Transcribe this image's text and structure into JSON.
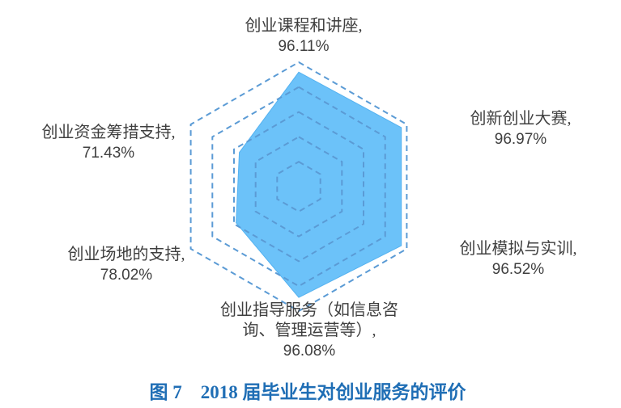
{
  "chart_data": {
    "type": "radar",
    "title": "图 7　2018 届毕业生对创业服务的评价",
    "legend": "none",
    "grid": {
      "rings": 5,
      "shape": "hexagon",
      "line_style": "dashed"
    },
    "axis_range": {
      "min": 0,
      "max": 100,
      "unit": "%"
    },
    "axes": [
      {
        "label": "创业课程和讲座",
        "label_lines": [
          "创业课程和讲座,"
        ],
        "value": 96.11,
        "value_label": "96.11%",
        "angle_deg": 90,
        "plot_ratio": 0.92
      },
      {
        "label": "创新创业大赛",
        "label_lines": [
          "创新创业大赛,"
        ],
        "value": 96.97,
        "value_label": "96.97%",
        "angle_deg": 30,
        "plot_ratio": 0.95
      },
      {
        "label": "创业模拟与实训",
        "label_lines": [
          "创业模拟与实训,"
        ],
        "value": 96.52,
        "value_label": "96.52%",
        "angle_deg": -30,
        "plot_ratio": 0.95
      },
      {
        "label": "创业指导服务（如信息咨询、管理运营等）",
        "label_lines": [
          "创业指导服务（如信息咨",
          "询、管理运营等）,"
        ],
        "value": 96.08,
        "value_label": "96.08%",
        "angle_deg": -90,
        "plot_ratio": 0.89
      },
      {
        "label": "创业场地的支持",
        "label_lines": [
          "创业场地的支持,"
        ],
        "value": 78.02,
        "value_label": "78.02%",
        "angle_deg": -150,
        "plot_ratio": 0.58
      },
      {
        "label": "创业资金筹措支持",
        "label_lines": [
          "创业资金筹措支持,"
        ],
        "value": 71.43,
        "value_label": "71.43%",
        "angle_deg": 150,
        "plot_ratio": 0.55
      }
    ],
    "colors": {
      "series_fill": "#6CC2F9",
      "series_edge": "#55B2F0",
      "grid_line": "#5B9BD5",
      "label_text": "#3F3F3F",
      "caption_text": "#1F6EB5",
      "background": "#FFFFFF"
    }
  },
  "caption": {
    "text": "图 7　2018 届毕业生对创业服务的评价"
  }
}
